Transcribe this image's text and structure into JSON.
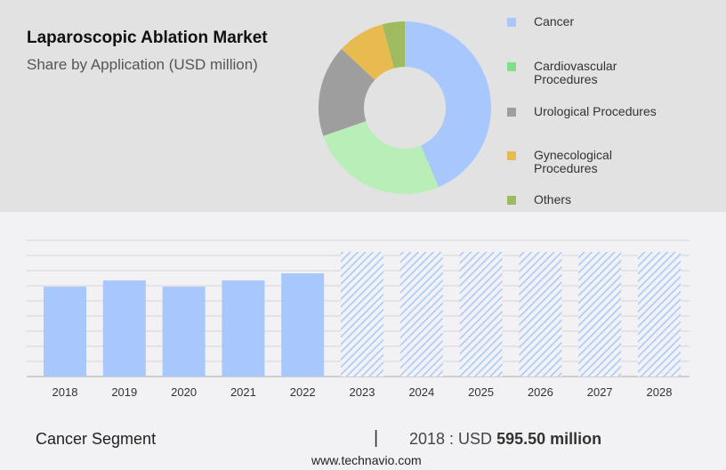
{
  "header": {
    "title": "Laparoscopic Ablation Market",
    "subtitle": "Share by Application (USD million)"
  },
  "colors": {
    "cancer": "#a8c8fd",
    "cardio": "#b8eeb8",
    "uro": "#9e9e9e",
    "gyn": "#e8bb50",
    "others": "#9fbb5f",
    "legend_cardio": "#7fe08a"
  },
  "chart_data": [
    {
      "type": "pie",
      "donut": true,
      "legend_placement": "right",
      "labels": [
        "Cancer",
        "Cardiovascular Procedures",
        "Urological Procedures",
        "Gynecological Procedures",
        "Others"
      ],
      "legend_lines": [
        [
          "Cancer"
        ],
        [
          "Cardiovascular",
          "Procedures"
        ],
        [
          "Urological Procedures"
        ],
        [
          "Gynecological",
          "Procedures"
        ],
        [
          "Others"
        ]
      ],
      "values": [
        43.6,
        26.1,
        17.2,
        8.9,
        4.2
      ]
    },
    {
      "type": "bar",
      "categories": [
        "2018",
        "2019",
        "2020",
        "2021",
        "2022",
        "2023",
        "2024",
        "2025",
        "2026",
        "2027",
        "2028"
      ],
      "values": [
        595.5,
        637,
        595.5,
        637,
        684,
        null,
        null,
        null,
        null,
        null,
        null
      ],
      "forecast_from": "2023",
      "grid": true,
      "ylim": [
        0,
        826
      ]
    }
  ],
  "footer": {
    "segment": "Cancer Segment",
    "separator": "|",
    "year_prefix": "2018 : USD",
    "value": "595.50 million",
    "site": "www.technavio.com"
  }
}
